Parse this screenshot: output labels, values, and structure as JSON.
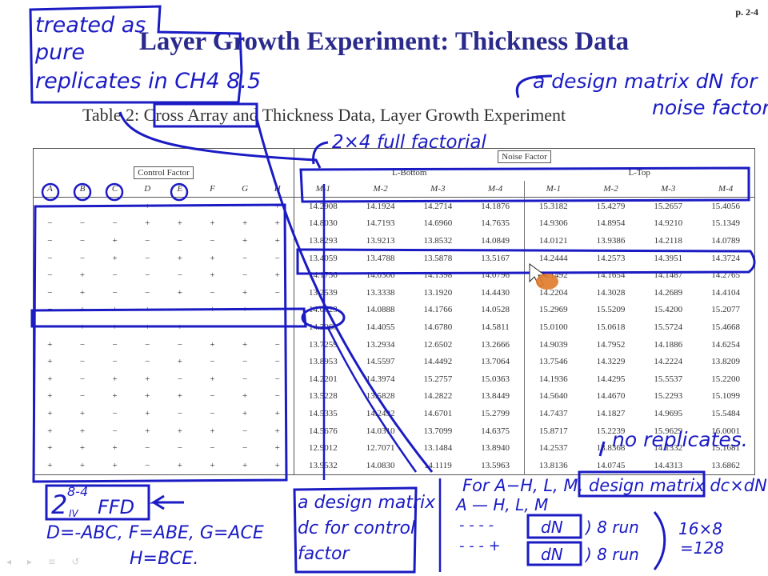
{
  "page_number": "p. 2-4",
  "title": "Layer Growth Experiment: Thickness Data",
  "subtitle": "Table 2: Cross Array and Thickness Data, Layer Growth Experiment",
  "table": {
    "control_factor_label": "Control Factor",
    "noise_factor_label": "Noise Factor",
    "bottom_label": "L-Bottom",
    "top_label": "L-Top",
    "control_headers": [
      "A",
      "B",
      "C",
      "D",
      "E",
      "F",
      "G",
      "H"
    ],
    "noise_headers": [
      "M-1",
      "M-2",
      "M-3",
      "M-4",
      "M-1",
      "M-2",
      "M-3",
      "M-4"
    ],
    "rows": [
      {
        "c": [
          "−",
          "−",
          "−",
          "+",
          "−",
          "−",
          "−",
          "+"
        ],
        "v": [
          "14.2908",
          "14.1924",
          "14.2714",
          "14.1876",
          "15.3182",
          "15.4279",
          "15.2657",
          "15.4056"
        ]
      },
      {
        "c": [
          "−",
          "−",
          "−",
          "+",
          "+",
          "+",
          "+",
          "+"
        ],
        "v": [
          "14.8030",
          "14.7193",
          "14.6960",
          "14.7635",
          "14.9306",
          "14.8954",
          "14.9210",
          "15.1349"
        ]
      },
      {
        "c": [
          "−",
          "−",
          "+",
          "−",
          "−",
          "−",
          "+",
          "+"
        ],
        "v": [
          "13.8293",
          "13.9213",
          "13.8532",
          "14.0849",
          "14.0121",
          "13.9386",
          "14.2118",
          "14.0789"
        ]
      },
      {
        "c": [
          "−",
          "−",
          "+",
          "−",
          "+",
          "+",
          "−",
          "−"
        ],
        "v": [
          "13.4059",
          "13.4788",
          "13.5878",
          "13.5167",
          "14.2444",
          "14.2573",
          "14.3951",
          "14.3724"
        ]
      },
      {
        "c": [
          "−",
          "+",
          "−",
          "−",
          "−",
          "+",
          "−",
          "+"
        ],
        "v": [
          "14.1736",
          "14.0306",
          "14.1398",
          "14.0796",
          "14.1492",
          "14.1654",
          "14.1487",
          "14.2765"
        ]
      },
      {
        "c": [
          "−",
          "+",
          "−",
          "−",
          "+",
          "−",
          "+",
          "−"
        ],
        "v": [
          "13.2539",
          "13.3338",
          "13.1920",
          "14.4430",
          "14.2204",
          "14.3028",
          "14.2689",
          "14.4104"
        ]
      },
      {
        "c": [
          "−",
          "+",
          "+",
          "+",
          "−",
          "+",
          "+",
          "−"
        ],
        "v": [
          "14.0623",
          "14.0888",
          "14.1766",
          "14.0528",
          "15.2969",
          "15.5209",
          "15.4200",
          "15.2077"
        ]
      },
      {
        "c": [
          "−",
          "+",
          "+",
          "+",
          "+",
          "−",
          "−",
          "−"
        ],
        "v": [
          "14.3068",
          "14.4055",
          "14.6780",
          "14.5811",
          "15.0100",
          "15.0618",
          "15.5724",
          "15.4668"
        ]
      },
      {
        "c": [
          "+",
          "−",
          "−",
          "−",
          "−",
          "+",
          "+",
          "−"
        ],
        "v": [
          "13.7259",
          "13.2934",
          "12.6502",
          "13.2666",
          "14.9039",
          "14.7952",
          "14.1886",
          "14.6254"
        ]
      },
      {
        "c": [
          "+",
          "−",
          "−",
          "−",
          "+",
          "−",
          "−",
          "−"
        ],
        "v": [
          "13.8953",
          "14.5597",
          "14.4492",
          "13.7064",
          "13.7546",
          "14.3229",
          "14.2224",
          "13.8209"
        ]
      },
      {
        "c": [
          "+",
          "−",
          "+",
          "+",
          "−",
          "+",
          "−",
          "−"
        ],
        "v": [
          "14.2201",
          "14.3974",
          "15.2757",
          "15.0363",
          "14.1936",
          "14.4295",
          "15.5537",
          "15.2200"
        ]
      },
      {
        "c": [
          "+",
          "−",
          "+",
          "+",
          "+",
          "−",
          "+",
          "−"
        ],
        "v": [
          "13.5228",
          "13.5828",
          "14.2822",
          "13.8449",
          "14.5640",
          "14.4670",
          "15.2293",
          "15.1099"
        ]
      },
      {
        "c": [
          "+",
          "+",
          "−",
          "+",
          "−",
          "−",
          "+",
          "+"
        ],
        "v": [
          "14.5335",
          "14.2492",
          "14.6701",
          "15.2799",
          "14.7437",
          "14.1827",
          "14.9695",
          "15.5484"
        ]
      },
      {
        "c": [
          "+",
          "+",
          "−",
          "+",
          "+",
          "+",
          "−",
          "+"
        ],
        "v": [
          "14.5676",
          "14.0310",
          "13.7099",
          "14.6375",
          "15.8717",
          "15.2239",
          "15.9629",
          "16.0001"
        ]
      },
      {
        "c": [
          "+",
          "+",
          "+",
          "−",
          "−",
          "−",
          "−",
          "+"
        ],
        "v": [
          "12.9012",
          "12.7071",
          "13.1484",
          "13.8940",
          "14.2537",
          "13.8368",
          "14.1332",
          "15.1681"
        ]
      },
      {
        "c": [
          "+",
          "+",
          "+",
          "−",
          "+",
          "+",
          "+",
          "+"
        ],
        "v": [
          "13.9532",
          "14.0830",
          "14.1119",
          "13.5963",
          "13.8136",
          "14.0745",
          "14.4313",
          "13.6862"
        ]
      }
    ]
  },
  "annotations": {
    "treated": [
      "treated as",
      "pure",
      "replicates in CH4 8.5"
    ],
    "design_matrix_noise": [
      "a design matrix dN for",
      "noise factor."
    ],
    "full_factorial": "2×4 full factorial",
    "ffd": "2",
    "ffd_sup": "8-4",
    "ffd_sub": "IV",
    "ffd_text": "FFD",
    "generators": [
      "D=-ABC, F=ABE, G=ACE",
      "H=BCE."
    ],
    "design_matrix_control": [
      "a design matrix",
      "dc for control",
      "factor"
    ],
    "no_replicates": "no replicates.",
    "for_line": "For A−H, L, M, design matrix dc×dN",
    "ah_line": "A — H, L, M",
    "dots1": "- - - -",
    "dots2": "- - - +",
    "dn": "dN",
    "run8": ") 8 run",
    "count": [
      "16×8",
      "=128"
    ]
  }
}
